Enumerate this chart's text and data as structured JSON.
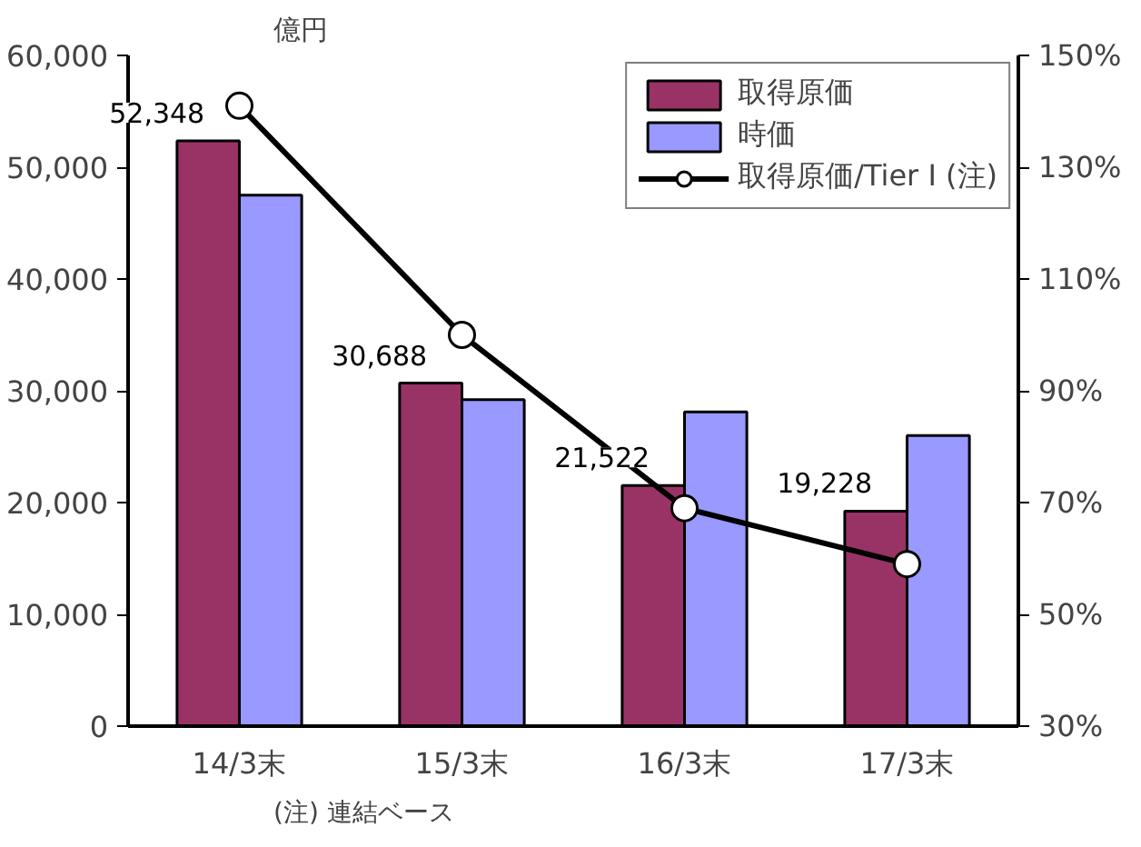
{
  "chart_data": {
    "type": "bar",
    "ylabel": "億円",
    "categories": [
      "14/3末",
      "15/3末",
      "16/3末",
      "17/3末"
    ],
    "series": [
      {
        "name": "取得原価",
        "color": "#993366",
        "values": [
          52348,
          30688,
          21522,
          19228
        ],
        "value_labels": [
          "52,348",
          "30,688",
          "21,522",
          "19,228"
        ]
      },
      {
        "name": "時価",
        "color": "#9999ff",
        "values": [
          47500,
          29200,
          28100,
          26000
        ]
      },
      {
        "name": "取得原価/Tier I (注)",
        "type": "line",
        "axis": "y2",
        "color": "#000000",
        "values": [
          141,
          100,
          69,
          59
        ]
      }
    ],
    "ylim": [
      0,
      60000
    ],
    "yticks": [
      {
        "value": 0,
        "label": "0"
      },
      {
        "value": 10000,
        "label": "10,000"
      },
      {
        "value": 20000,
        "label": "20,000"
      },
      {
        "value": 30000,
        "label": "30,000"
      },
      {
        "value": 40000,
        "label": "40,000"
      },
      {
        "value": 50000,
        "label": "50,000"
      },
      {
        "value": 60000,
        "label": "60,000"
      }
    ],
    "y2lim": [
      30,
      150
    ],
    "y2ticks": [
      {
        "value": 30,
        "label": "30%"
      },
      {
        "value": 50,
        "label": "50%"
      },
      {
        "value": 70,
        "label": "70%"
      },
      {
        "value": 90,
        "label": "90%"
      },
      {
        "value": 110,
        "label": "110%"
      },
      {
        "value": 130,
        "label": "130%"
      },
      {
        "value": 150,
        "label": "150%"
      }
    ],
    "marker": "circle",
    "grid": false,
    "legend": "top right",
    "annotations": [
      "(注) 連結ベース"
    ]
  }
}
